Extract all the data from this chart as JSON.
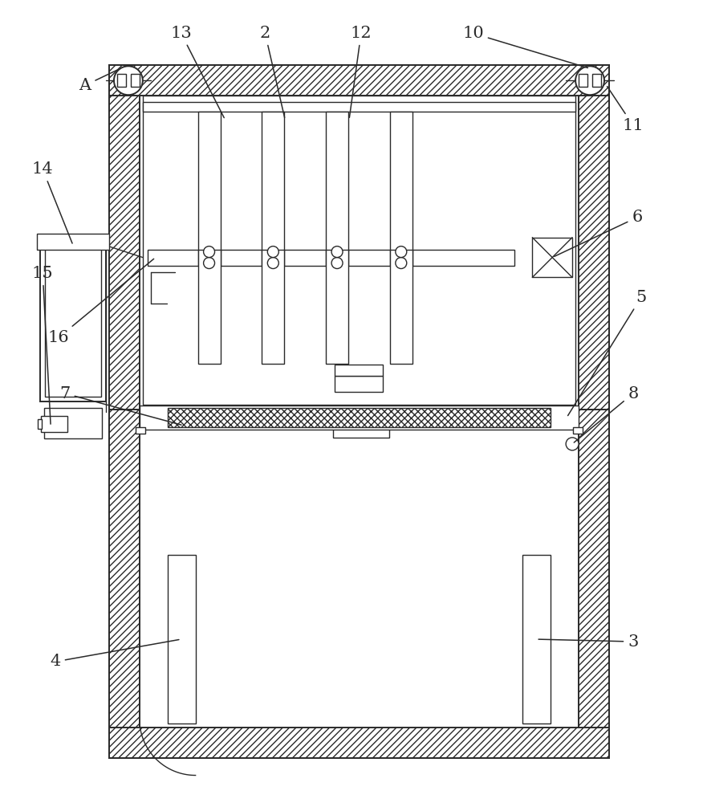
{
  "bg_color": "#ffffff",
  "line_color": "#2a2a2a",
  "figsize": [
    8.76,
    10.0
  ],
  "dpi": 100,
  "label_fontsize": 15,
  "label_color": "#2a2a2a"
}
